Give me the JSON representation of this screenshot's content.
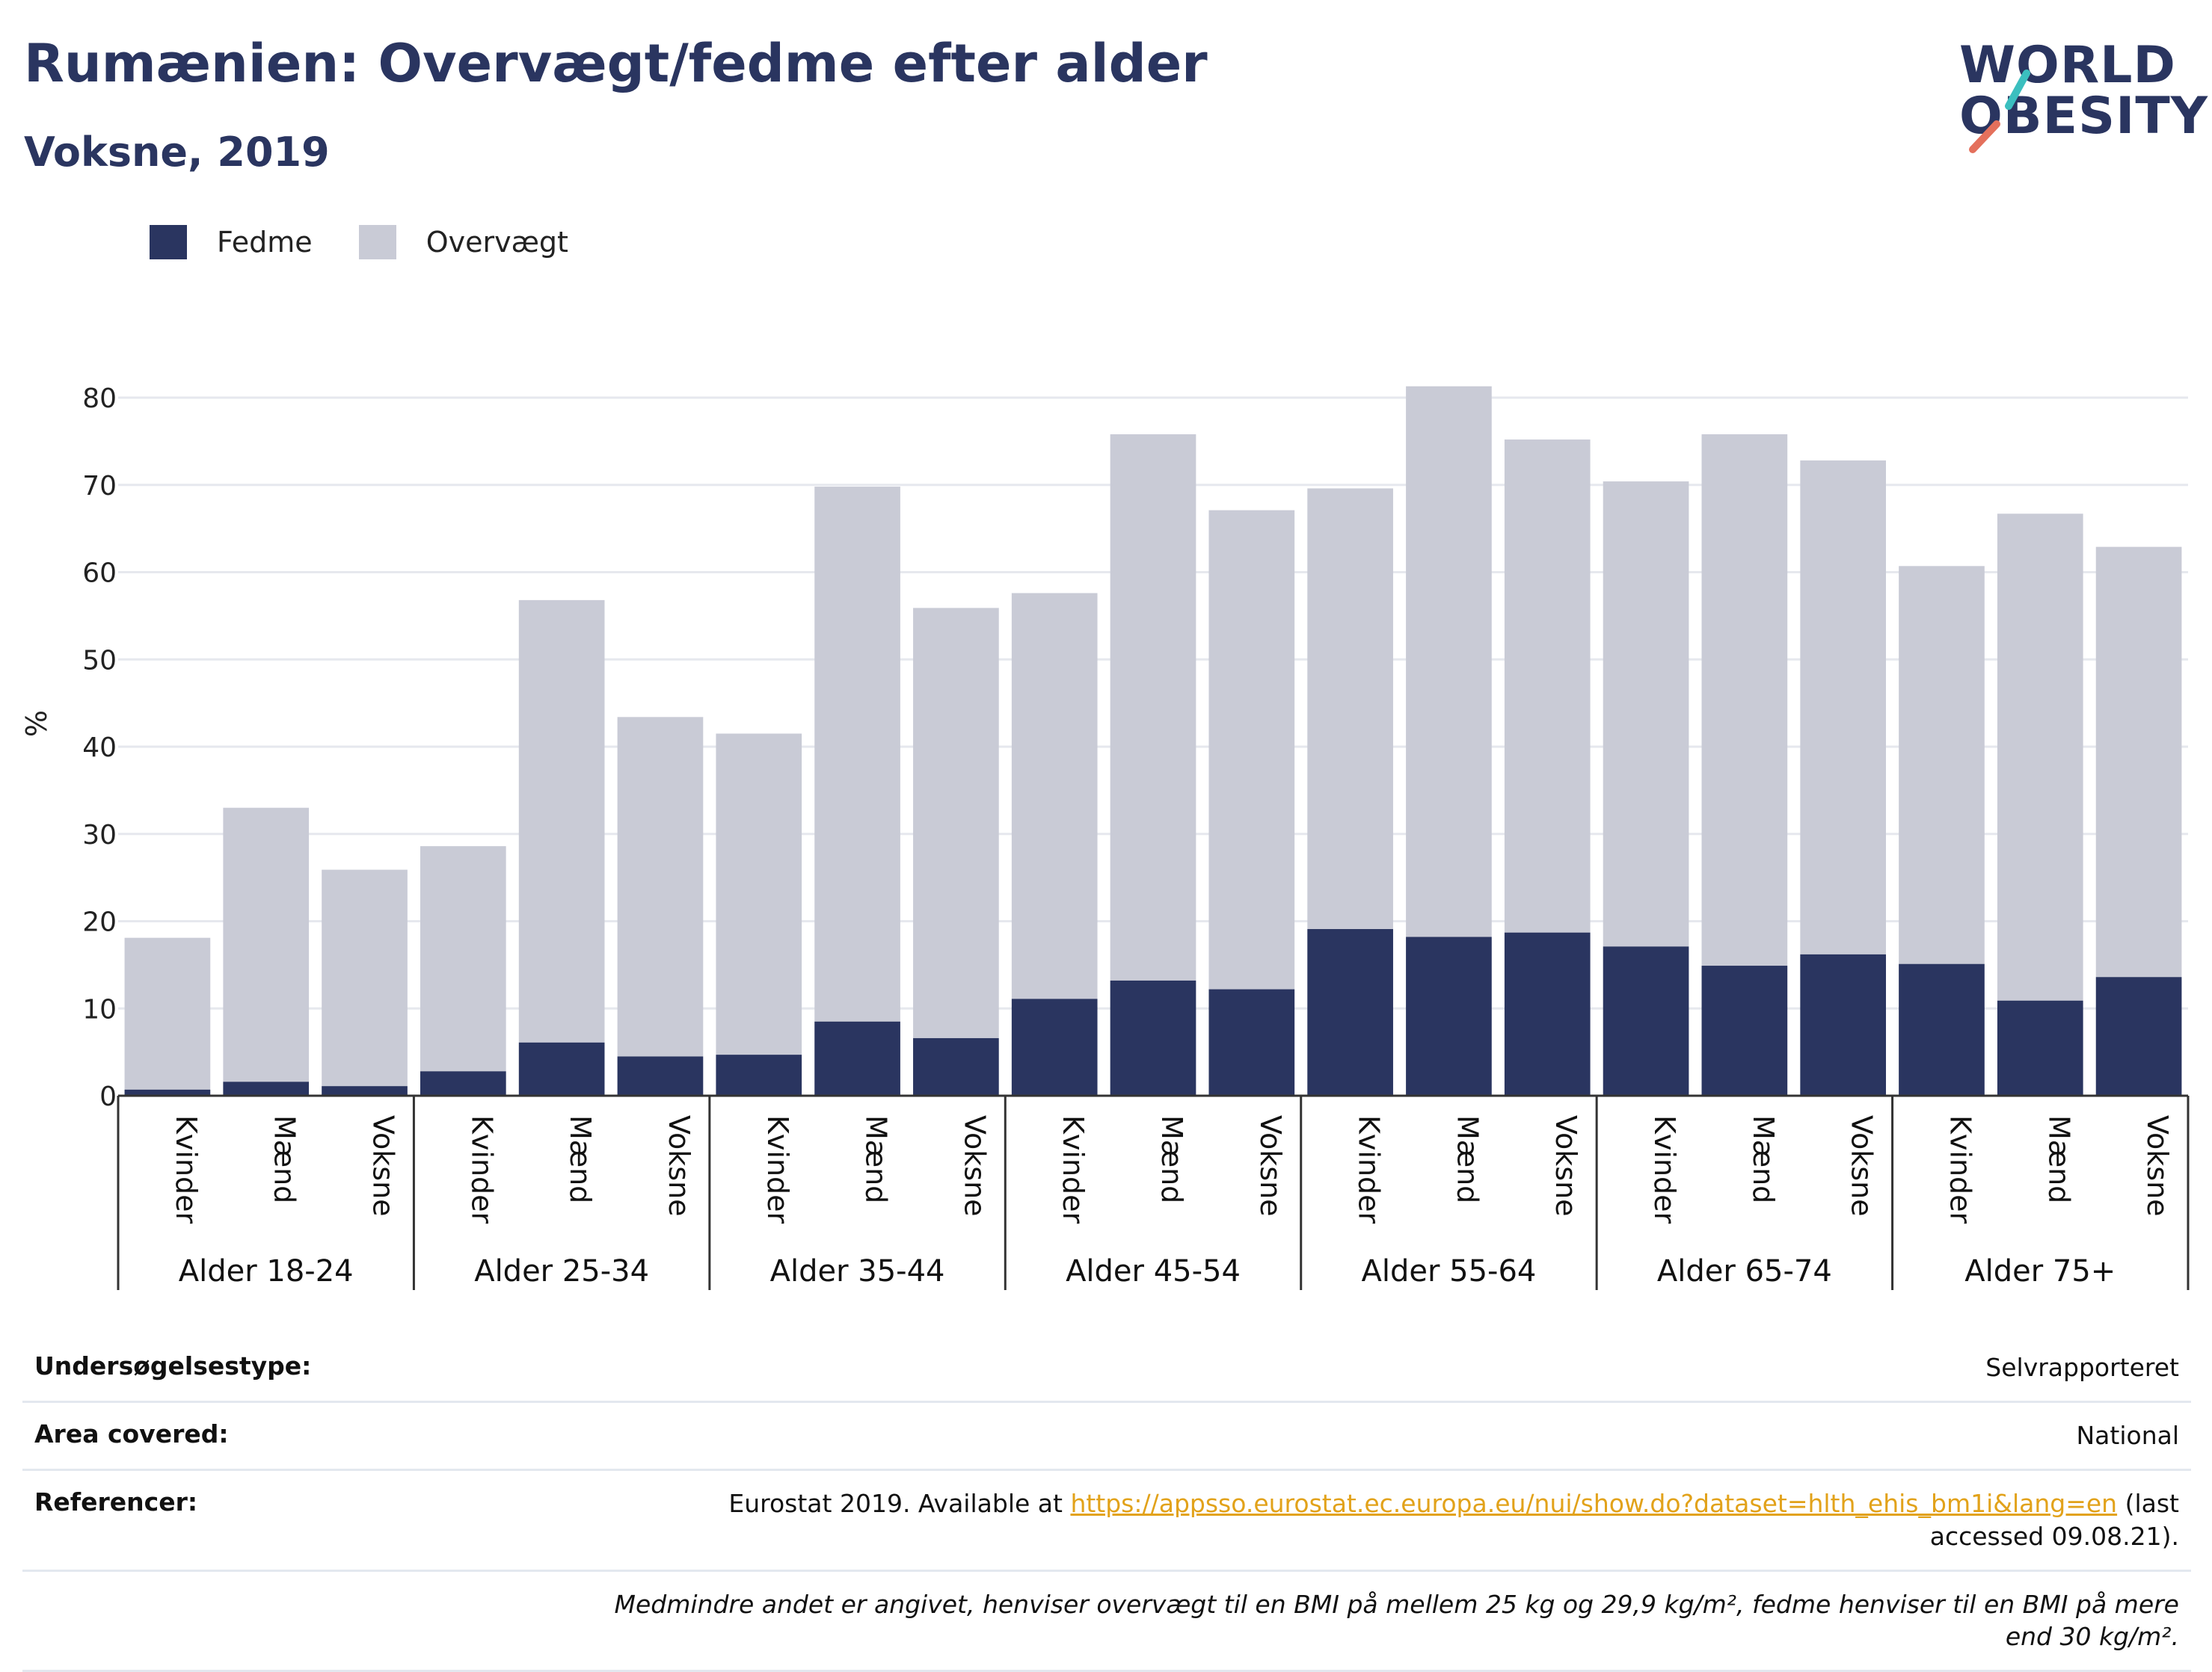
{
  "header": {
    "title": "Rumænien: Overvægt/fedme efter alder",
    "subtitle": "Voksne, 2019"
  },
  "logo": {
    "line1": "WORLD",
    "line2": "OBESITY"
  },
  "legend": [
    {
      "label": "Fedme",
      "color": "#2a3560"
    },
    {
      "label": "Overvægt",
      "color": "#c9cbd6"
    }
  ],
  "chart_data": {
    "type": "bar",
    "stacked": true,
    "ylabel": "%",
    "ylim": [
      0,
      80
    ],
    "yticks": [
      0,
      10,
      20,
      30,
      40,
      50,
      60,
      70,
      80
    ],
    "grid": true,
    "legend_position": "top-left",
    "groups": [
      "Alder 18-24",
      "Alder 25-34",
      "Alder 35-44",
      "Alder 45-54",
      "Alder 55-64",
      "Alder 65-74",
      "Alder 75+"
    ],
    "subcategories": [
      "Kvinder",
      "Mænd",
      "Voksne"
    ],
    "series": [
      {
        "name": "Fedme",
        "color": "#2a3560",
        "values": [
          0.7,
          1.6,
          1.1,
          2.8,
          6.1,
          4.5,
          4.7,
          8.5,
          6.6,
          11.1,
          13.2,
          12.2,
          19.1,
          18.2,
          18.7,
          17.1,
          14.9,
          16.2,
          15.1,
          10.9,
          13.6
        ]
      },
      {
        "name": "Overvægt",
        "color": "#c9cbd6",
        "values": [
          17.4,
          31.4,
          24.8,
          25.8,
          50.7,
          38.9,
          36.8,
          61.3,
          49.3,
          46.5,
          62.6,
          54.9,
          50.5,
          63.1,
          56.5,
          53.3,
          60.9,
          56.6,
          45.6,
          55.8,
          49.3
        ]
      }
    ]
  },
  "info": {
    "rows": [
      {
        "key": "Undersøgelsestype:",
        "value": "Selvrapporteret"
      },
      {
        "key": "Area covered:",
        "value": "National"
      }
    ],
    "ref_key": "Referencer:",
    "ref_pre": "Eurostat 2019. Available at ",
    "ref_link": "https://appsso.eurostat.ec.europa.eu/nui/show.do?dataset=hlth_ehis_bm1i&lang=en",
    "ref_post": " (last accessed 09.08.21).",
    "note": "Medmindre andet er angivet, henviser overvægt til en BMI på mellem 25 kg og 29,9 kg/m², fedme henviser til en BMI på mere end 30 kg/m²."
  }
}
